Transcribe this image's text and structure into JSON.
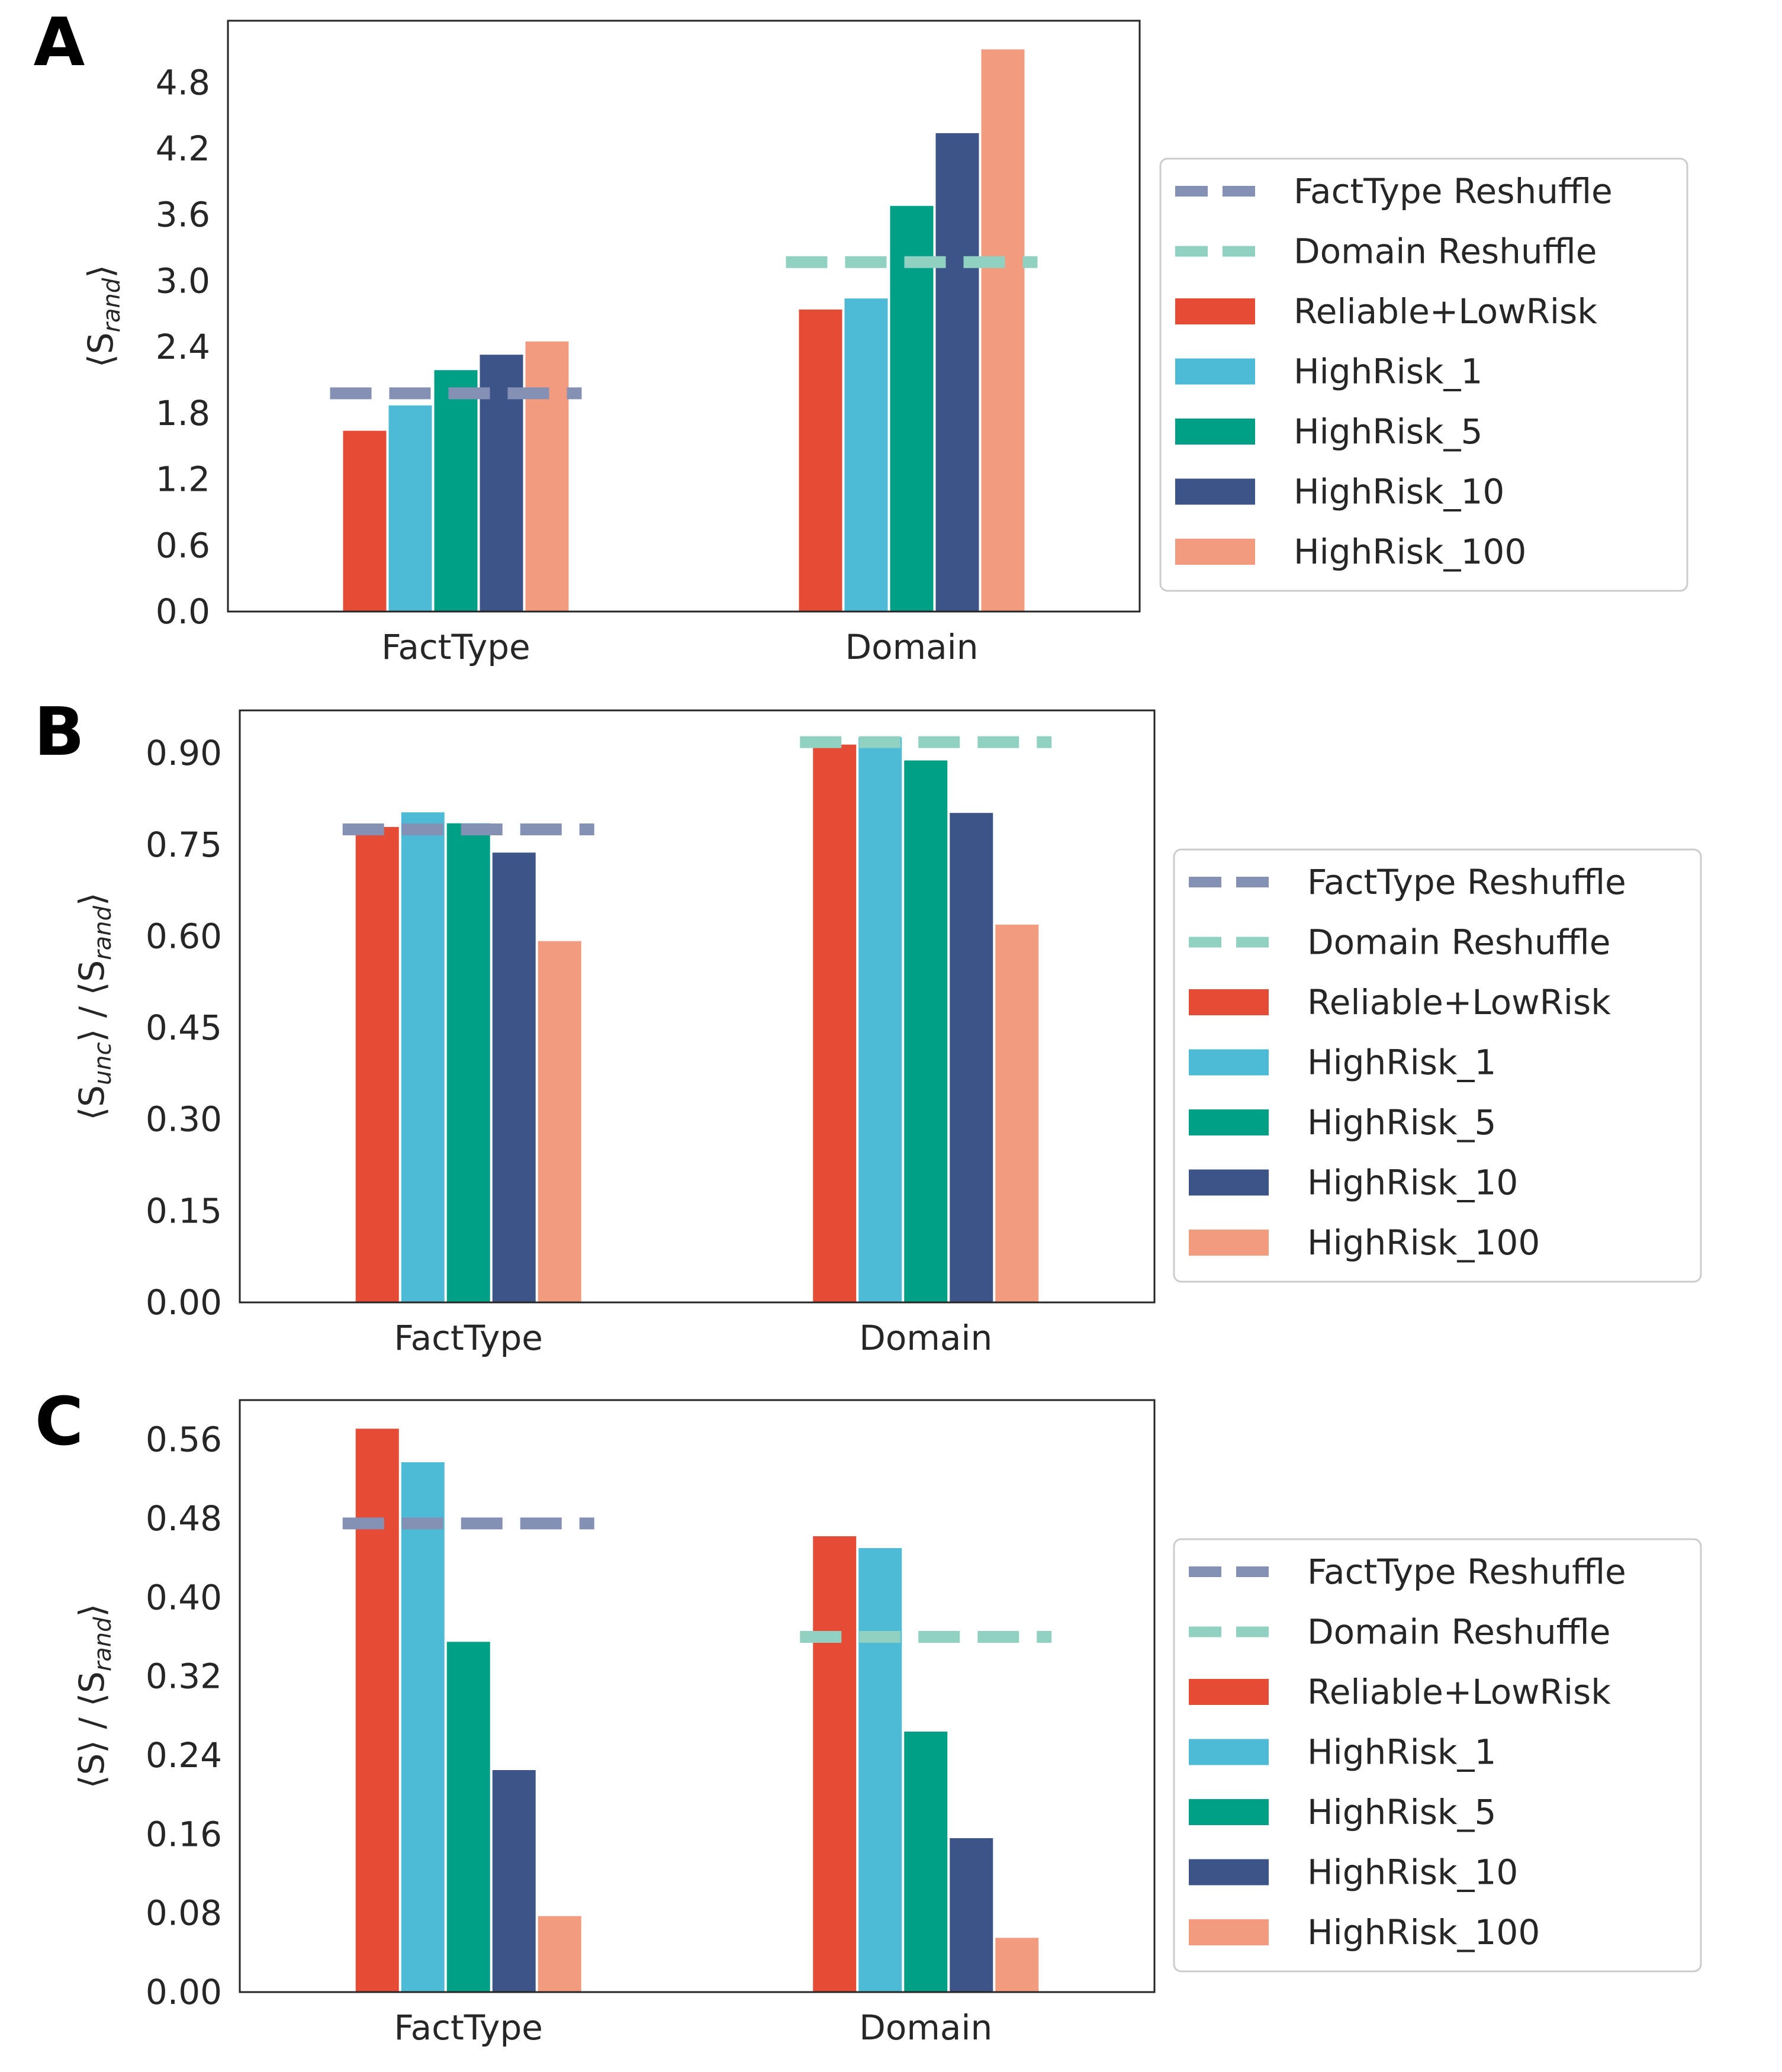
{
  "chart_data": [
    {
      "panel_label": "A",
      "type": "bar",
      "categories": [
        "FactType",
        "Domain"
      ],
      "ylabel": "⟨S_rand⟩",
      "ylabel_main": "⟨S",
      "ylabel_sub": "rand",
      "ylabel_tail": "⟩",
      "ylim": [
        0,
        5.36
      ],
      "yticks": [
        "0.0",
        "0.6",
        "1.2",
        "1.8",
        "2.4",
        "3.0",
        "3.6",
        "4.2",
        "4.8"
      ],
      "series": [
        {
          "name": "Reliable+LowRisk",
          "color": "#E64B35",
          "values": [
            1.64,
            2.74
          ]
        },
        {
          "name": "HighRisk_1",
          "color": "#4DBBD5",
          "values": [
            1.87,
            2.84
          ]
        },
        {
          "name": "HighRisk_5",
          "color": "#00A087",
          "values": [
            2.19,
            3.68
          ]
        },
        {
          "name": "HighRisk_10",
          "color": "#3C5488",
          "values": [
            2.33,
            4.34
          ]
        },
        {
          "name": "HighRisk_100",
          "color": "#F39B7F",
          "values": [
            2.45,
            5.1
          ]
        }
      ],
      "reference_lines": [
        {
          "name": "FactType Reshuffle",
          "color": "#8491B4",
          "category": "FactType",
          "value": 1.98
        },
        {
          "name": "Domain Reshuffle",
          "color": "#91D1C2",
          "category": "Domain",
          "value": 3.17
        }
      ],
      "legend_position": "right"
    },
    {
      "panel_label": "B",
      "type": "bar",
      "categories": [
        "FactType",
        "Domain"
      ],
      "ylabel": "⟨S_unc⟩ / ⟨S_rand⟩",
      "ylabel_main": "⟨S",
      "ylabel_sub": "unc",
      "ylabel_tail": "⟩ / ⟨S",
      "ylabel_sub2": "rand",
      "ylabel_tail2": "⟩",
      "ylim": [
        0,
        0.97
      ],
      "yticks": [
        "0.00",
        "0.15",
        "0.30",
        "0.45",
        "0.60",
        "0.75",
        "0.90"
      ],
      "series": [
        {
          "name": "Reliable+LowRisk",
          "color": "#E64B35",
          "values": [
            0.779,
            0.914
          ]
        },
        {
          "name": "HighRisk_1",
          "color": "#4DBBD5",
          "values": [
            0.803,
            0.926
          ]
        },
        {
          "name": "HighRisk_5",
          "color": "#00A087",
          "values": [
            0.785,
            0.888
          ]
        },
        {
          "name": "HighRisk_10",
          "color": "#3C5488",
          "values": [
            0.737,
            0.802
          ]
        },
        {
          "name": "HighRisk_100",
          "color": "#F39B7F",
          "values": [
            0.592,
            0.619
          ]
        }
      ],
      "reference_lines": [
        {
          "name": "FactType Reshuffle",
          "color": "#8491B4",
          "category": "FactType",
          "value": 0.775
        },
        {
          "name": "Domain Reshuffle",
          "color": "#91D1C2",
          "category": "Domain",
          "value": 0.918
        }
      ],
      "legend_position": "right"
    },
    {
      "panel_label": "C",
      "type": "bar",
      "categories": [
        "FactType",
        "Domain"
      ],
      "ylabel": "⟨S⟩ / ⟨S_rand⟩",
      "ylabel_main": "⟨S⟩ / ⟨S",
      "ylabel_sub": "rand",
      "ylabel_tail": "⟩",
      "ylim": [
        0,
        0.6
      ],
      "yticks": [
        "0.00",
        "0.08",
        "0.16",
        "0.24",
        "0.32",
        "0.40",
        "0.48",
        "0.56"
      ],
      "series": [
        {
          "name": "Reliable+LowRisk",
          "color": "#E64B35",
          "values": [
            0.571,
            0.462
          ]
        },
        {
          "name": "HighRisk_1",
          "color": "#4DBBD5",
          "values": [
            0.537,
            0.45
          ]
        },
        {
          "name": "HighRisk_5",
          "color": "#00A087",
          "values": [
            0.355,
            0.264
          ]
        },
        {
          "name": "HighRisk_10",
          "color": "#3C5488",
          "values": [
            0.225,
            0.156
          ]
        },
        {
          "name": "HighRisk_100",
          "color": "#F39B7F",
          "values": [
            0.077,
            0.055
          ]
        }
      ],
      "reference_lines": [
        {
          "name": "FactType Reshuffle",
          "color": "#8491B4",
          "category": "FactType",
          "value": 0.475
        },
        {
          "name": "Domain Reshuffle",
          "color": "#91D1C2",
          "category": "Domain",
          "value": 0.36
        }
      ],
      "legend_position": "right"
    }
  ]
}
